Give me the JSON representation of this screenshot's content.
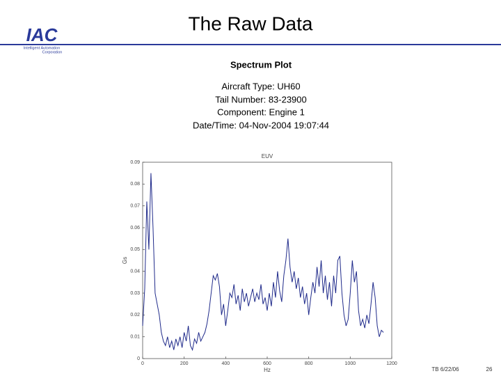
{
  "slide": {
    "title": "The Raw Data",
    "logo": "IAC",
    "logo_line1": "Intelligent Automation",
    "logo_line2": "Corporation",
    "footer": "TB 6/22/06",
    "page_number": "26",
    "plot_heading": "Spectrum Plot",
    "info": [
      "Aircraft Type: UH60",
      "Tail Number: 83-23900",
      "Component: Engine 1",
      "Date/Time: 04-Nov-2004 19:07:44"
    ]
  },
  "chart_data": {
    "type": "line",
    "title": "EUV",
    "x_label": "Hz",
    "y_label": "Gs",
    "color": "#1f2a8a",
    "xlim": [
      0,
      1200
    ],
    "xticks": [
      0,
      200,
      400,
      600,
      800,
      1000,
      1200
    ],
    "ylim": [
      0,
      0.09
    ],
    "yticks": [
      0,
      0.01,
      0.02,
      0.03,
      0.04,
      0.05,
      0.06,
      0.07,
      0.08,
      0.09
    ],
    "x": [
      0,
      10,
      20,
      30,
      40,
      50,
      60,
      70,
      80,
      90,
      100,
      110,
      120,
      130,
      140,
      150,
      160,
      170,
      180,
      190,
      200,
      210,
      220,
      230,
      240,
      250,
      260,
      270,
      280,
      290,
      300,
      310,
      320,
      330,
      340,
      350,
      360,
      370,
      380,
      390,
      400,
      410,
      420,
      430,
      440,
      450,
      460,
      470,
      480,
      490,
      500,
      510,
      520,
      530,
      540,
      550,
      560,
      570,
      580,
      590,
      600,
      610,
      620,
      630,
      640,
      650,
      660,
      670,
      680,
      690,
      700,
      710,
      720,
      730,
      740,
      750,
      760,
      770,
      780,
      790,
      800,
      810,
      820,
      830,
      840,
      850,
      860,
      870,
      880,
      890,
      900,
      910,
      920,
      930,
      940,
      950,
      960,
      970,
      980,
      990,
      1000,
      1010,
      1020,
      1030,
      1040,
      1050,
      1060,
      1070,
      1080,
      1090,
      1100,
      1110,
      1120,
      1130,
      1140,
      1150,
      1160
    ],
    "values": [
      0.015,
      0.032,
      0.072,
      0.05,
      0.085,
      0.06,
      0.03,
      0.025,
      0.02,
      0.012,
      0.008,
      0.006,
      0.01,
      0.005,
      0.008,
      0.004,
      0.009,
      0.006,
      0.01,
      0.005,
      0.012,
      0.008,
      0.015,
      0.006,
      0.004,
      0.009,
      0.007,
      0.012,
      0.008,
      0.01,
      0.012,
      0.016,
      0.022,
      0.03,
      0.038,
      0.036,
      0.039,
      0.033,
      0.02,
      0.025,
      0.015,
      0.022,
      0.03,
      0.028,
      0.034,
      0.025,
      0.029,
      0.022,
      0.032,
      0.026,
      0.03,
      0.024,
      0.028,
      0.032,
      0.026,
      0.03,
      0.027,
      0.034,
      0.025,
      0.028,
      0.022,
      0.03,
      0.024,
      0.035,
      0.028,
      0.04,
      0.031,
      0.026,
      0.038,
      0.045,
      0.055,
      0.042,
      0.035,
      0.04,
      0.032,
      0.037,
      0.028,
      0.033,
      0.025,
      0.03,
      0.02,
      0.028,
      0.035,
      0.03,
      0.042,
      0.033,
      0.045,
      0.03,
      0.038,
      0.027,
      0.035,
      0.024,
      0.038,
      0.03,
      0.045,
      0.047,
      0.03,
      0.02,
      0.015,
      0.018,
      0.03,
      0.045,
      0.035,
      0.04,
      0.022,
      0.015,
      0.018,
      0.014,
      0.02,
      0.016,
      0.025,
      0.035,
      0.028,
      0.015,
      0.01,
      0.013,
      0.012
    ]
  }
}
